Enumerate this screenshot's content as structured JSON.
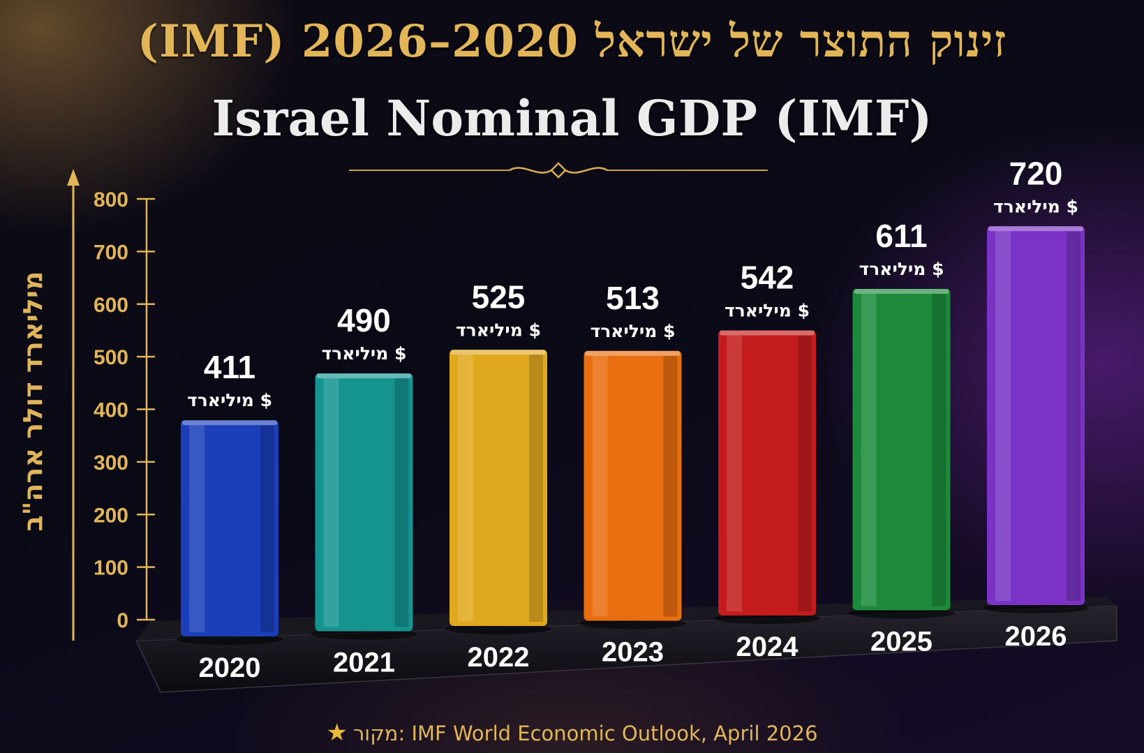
{
  "title_he": "זינוק התוצר של ישראל 2020–2026 (IMF)",
  "title_en": "Israel Nominal GDP (IMF)",
  "source": "מקור: IMF World Economic Outlook, April 2026",
  "colors": {
    "gold": "#e2b658",
    "bars": [
      "#1a3fb8",
      "#14938f",
      "#e0a81e",
      "#e86e10",
      "#c41c1c",
      "#1c8a3a",
      "#7a33c4"
    ]
  },
  "chart_data": {
    "type": "bar",
    "title": "Israel Nominal GDP (IMF)",
    "ylabel": "מיליארד דולר ארה\"ב",
    "xlabel": "",
    "categories": [
      "2020",
      "2021",
      "2022",
      "2023",
      "2024",
      "2025",
      "2026"
    ],
    "values": [
      411,
      490,
      525,
      513,
      542,
      611,
      720
    ],
    "value_unit_label": "$ מיליארד",
    "ylim": [
      0,
      800
    ],
    "yticks": [
      0,
      100,
      200,
      300,
      400,
      500,
      600,
      700,
      800
    ],
    "grid": false,
    "legend": "none"
  }
}
